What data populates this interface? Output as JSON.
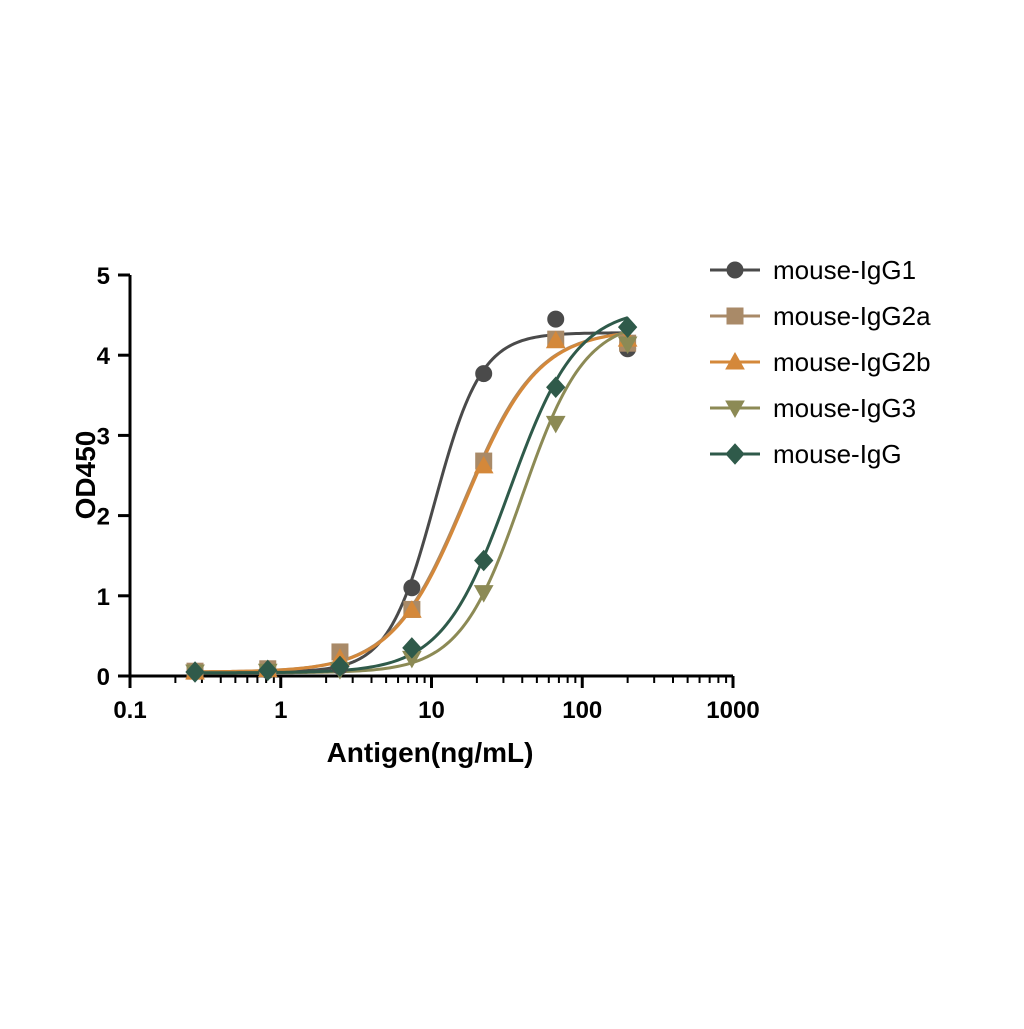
{
  "chart_data": {
    "type": "scatter",
    "title": "",
    "xlabel": "Antigen(ng/mL)",
    "ylabel": "OD450",
    "xscale": "log",
    "xlim": [
      0.1,
      1000
    ],
    "ylim": [
      0,
      5
    ],
    "xticks": [
      0.1,
      1,
      10,
      100,
      1000
    ],
    "xtick_labels": [
      "0.1",
      "1",
      "10",
      "100",
      "1000"
    ],
    "yticks": [
      0,
      1,
      2,
      3,
      4,
      5
    ],
    "ytick_labels": [
      "0",
      "1",
      "2",
      "3",
      "4",
      "5"
    ],
    "grid": false,
    "legend_position": "top-right, outside plot",
    "fit": "four-parameter logistic curve per series",
    "x": [
      0.27,
      0.82,
      2.47,
      7.41,
      22.2,
      66.7,
      200
    ],
    "series": [
      {
        "name": "mouse-IgG1",
        "marker": "circle",
        "color": "#4a4a4a",
        "values": [
          0.06,
          0.07,
          0.12,
          1.1,
          3.77,
          4.45,
          4.08
        ],
        "fit_params": {
          "bottom": 0.05,
          "top": 4.28,
          "ec50": 10.5,
          "hill": 2.8
        }
      },
      {
        "name": "mouse-IgG2a",
        "marker": "square",
        "color": "#a98a68",
        "values": [
          0.06,
          0.09,
          0.3,
          0.83,
          2.68,
          4.2,
          4.15
        ],
        "fit_params": {
          "bottom": 0.05,
          "top": 4.32,
          "ec50": 16.5,
          "hill": 1.8
        }
      },
      {
        "name": "mouse-IgG2b",
        "marker": "triangle-up",
        "color": "#d4883a",
        "values": [
          0.05,
          0.08,
          0.22,
          0.82,
          2.62,
          4.18,
          4.2
        ],
        "fit_params": {
          "bottom": 0.05,
          "top": 4.32,
          "ec50": 16.8,
          "hill": 1.8
        }
      },
      {
        "name": "mouse-IgG3",
        "marker": "triangle-down",
        "color": "#8c8a55",
        "values": [
          0.05,
          0.06,
          0.08,
          0.22,
          1.04,
          3.15,
          4.14
        ],
        "fit_params": {
          "bottom": 0.04,
          "top": 4.45,
          "ec50": 40,
          "hill": 2.1
        }
      },
      {
        "name": "mouse-IgG",
        "marker": "diamond",
        "color": "#2f5a4a",
        "values": [
          0.05,
          0.07,
          0.12,
          0.35,
          1.44,
          3.6,
          4.35
        ],
        "fit_params": {
          "bottom": 0.04,
          "top": 4.6,
          "ec50": 33,
          "hill": 1.95
        }
      }
    ]
  }
}
